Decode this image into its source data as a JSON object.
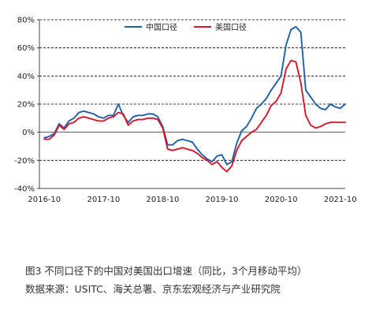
{
  "caption": {
    "title": "图3  不同口径下的中国对美国出口增速（同比，3个月移动平均）",
    "source": "数据来源：USITC、海关总署、京东宏观经济与产业研究院"
  },
  "chart_data": {
    "type": "line",
    "title": "",
    "xlabel": "",
    "ylabel": "",
    "y_unit": "%",
    "ylim": [
      -40,
      80
    ],
    "yticks": [
      -40,
      -20,
      0,
      20,
      40,
      60,
      80
    ],
    "ytick_labels": [
      "-40%",
      "-20%",
      "0%",
      "20%",
      "40%",
      "60%",
      "80%"
    ],
    "xlim": [
      "2016-09",
      "2021-11"
    ],
    "xticks": [
      "2016-10",
      "2017-10",
      "2018-10",
      "2019-10",
      "2020-10",
      "2021-10"
    ],
    "xtick_labels": [
      "2016-10",
      "2017-10",
      "2018-10",
      "2019-10",
      "2020-10",
      "2021-10"
    ],
    "grid": "horizontal dashed",
    "legend_position": "top-center",
    "series": [
      {
        "name": "中国口径",
        "color": "#1f5fa8",
        "x": [
          "2016-10",
          "2016-11",
          "2016-12",
          "2017-01",
          "2017-02",
          "2017-03",
          "2017-04",
          "2017-05",
          "2017-06",
          "2017-07",
          "2017-08",
          "2017-09",
          "2017-10",
          "2017-11",
          "2017-12",
          "2018-01",
          "2018-02",
          "2018-03",
          "2018-04",
          "2018-05",
          "2018-06",
          "2018-07",
          "2018-08",
          "2018-09",
          "2018-10",
          "2018-11",
          "2018-12",
          "2019-01",
          "2019-02",
          "2019-03",
          "2019-04",
          "2019-05",
          "2019-06",
          "2019-07",
          "2019-08",
          "2019-09",
          "2019-10",
          "2019-11",
          "2019-12",
          "2020-01",
          "2020-02",
          "2020-03",
          "2020-04",
          "2020-05",
          "2020-06",
          "2020-07",
          "2020-08",
          "2020-09",
          "2020-10",
          "2020-11",
          "2020-12",
          "2021-01",
          "2021-02",
          "2021-03",
          "2021-04",
          "2021-05",
          "2021-06",
          "2021-07",
          "2021-08",
          "2021-09",
          "2021-10",
          "2021-11"
        ],
        "values": [
          -4,
          -3,
          -1,
          6,
          3,
          8,
          10,
          14,
          15,
          14,
          13,
          11,
          10,
          12,
          12,
          20,
          12,
          7,
          11,
          12,
          12,
          13,
          13,
          11,
          4,
          -9,
          -9,
          -6,
          -5,
          -6,
          -7,
          -12,
          -16,
          -19,
          -21,
          -17,
          -16,
          -23,
          -21,
          -8,
          1,
          4,
          10,
          17,
          20,
          24,
          30,
          35,
          40,
          62,
          73,
          75,
          71,
          30,
          25,
          20,
          17,
          16,
          20,
          18,
          17,
          20
        ]
      },
      {
        "name": "美国口径",
        "color": "#d9162b",
        "x": [
          "2016-10",
          "2016-11",
          "2016-12",
          "2017-01",
          "2017-02",
          "2017-03",
          "2017-04",
          "2017-05",
          "2017-06",
          "2017-07",
          "2017-08",
          "2017-09",
          "2017-10",
          "2017-11",
          "2017-12",
          "2018-01",
          "2018-02",
          "2018-03",
          "2018-04",
          "2018-05",
          "2018-06",
          "2018-07",
          "2018-08",
          "2018-09",
          "2018-10",
          "2018-11",
          "2018-12",
          "2019-01",
          "2019-02",
          "2019-03",
          "2019-04",
          "2019-05",
          "2019-06",
          "2019-07",
          "2019-08",
          "2019-09",
          "2019-10",
          "2019-11",
          "2019-12",
          "2020-01",
          "2020-02",
          "2020-03",
          "2020-04",
          "2020-05",
          "2020-06",
          "2020-07",
          "2020-08",
          "2020-09",
          "2020-10",
          "2020-11",
          "2020-12",
          "2021-01",
          "2021-02",
          "2021-03",
          "2021-04",
          "2021-05",
          "2021-06",
          "2021-07",
          "2021-08",
          "2021-09",
          "2021-10",
          "2021-11"
        ],
        "values": [
          -5,
          -5,
          -2,
          5,
          2,
          6,
          7,
          10,
          11,
          10,
          9,
          8,
          8,
          10,
          11,
          14,
          13,
          5,
          8,
          9,
          9,
          10,
          10,
          9,
          3,
          -12,
          -13,
          -12,
          -11,
          -12,
          -13,
          -15,
          -18,
          -20,
          -23,
          -21,
          -25,
          -28,
          -24,
          -13,
          -6,
          -3,
          0,
          2,
          7,
          12,
          19,
          22,
          28,
          45,
          51,
          50,
          35,
          12,
          5,
          3,
          4,
          6,
          7,
          7,
          7,
          7
        ]
      }
    ]
  }
}
